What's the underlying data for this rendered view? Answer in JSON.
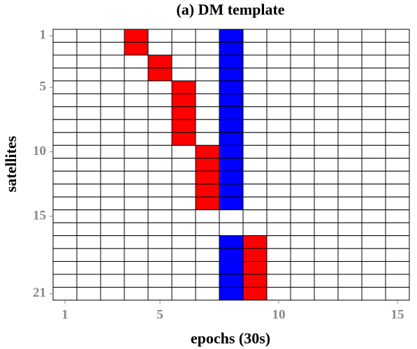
{
  "chart_data": {
    "type": "heatmap",
    "title": "(a) DM template",
    "x_label": "epochs (30s)",
    "y_label": "satellites",
    "xlim": [
      0.5,
      15.5
    ],
    "ylim": [
      0.5,
      21.5
    ],
    "xticks": [
      1,
      5,
      10,
      15
    ],
    "yticks": [
      1,
      5,
      10,
      15,
      21
    ],
    "colors": [
      "#ffffff",
      "#ff0000",
      "#0000ff"
    ],
    "z": [
      [
        0,
        0,
        0,
        1,
        0,
        0,
        0,
        2,
        0,
        0,
        0,
        0,
        0,
        0,
        0
      ],
      [
        0,
        0,
        0,
        1,
        0,
        0,
        0,
        2,
        0,
        0,
        0,
        0,
        0,
        0,
        0
      ],
      [
        0,
        0,
        0,
        0,
        1,
        0,
        0,
        2,
        0,
        0,
        0,
        0,
        0,
        0,
        0
      ],
      [
        0,
        0,
        0,
        0,
        1,
        0,
        0,
        2,
        0,
        0,
        0,
        0,
        0,
        0,
        0
      ],
      [
        0,
        0,
        0,
        0,
        0,
        1,
        0,
        2,
        0,
        0,
        0,
        0,
        0,
        0,
        0
      ],
      [
        0,
        0,
        0,
        0,
        0,
        1,
        0,
        2,
        0,
        0,
        0,
        0,
        0,
        0,
        0
      ],
      [
        0,
        0,
        0,
        0,
        0,
        1,
        0,
        2,
        0,
        0,
        0,
        0,
        0,
        0,
        0
      ],
      [
        0,
        0,
        0,
        0,
        0,
        1,
        0,
        2,
        0,
        0,
        0,
        0,
        0,
        0,
        0
      ],
      [
        0,
        0,
        0,
        0,
        0,
        1,
        0,
        2,
        0,
        0,
        0,
        0,
        0,
        0,
        0
      ],
      [
        0,
        0,
        0,
        0,
        0,
        0,
        1,
        2,
        0,
        0,
        0,
        0,
        0,
        0,
        0
      ],
      [
        0,
        0,
        0,
        0,
        0,
        0,
        1,
        2,
        0,
        0,
        0,
        0,
        0,
        0,
        0
      ],
      [
        0,
        0,
        0,
        0,
        0,
        0,
        1,
        2,
        0,
        0,
        0,
        0,
        0,
        0,
        0
      ],
      [
        0,
        0,
        0,
        0,
        0,
        0,
        1,
        2,
        0,
        0,
        0,
        0,
        0,
        0,
        0
      ],
      [
        0,
        0,
        0,
        0,
        0,
        0,
        1,
        2,
        0,
        0,
        0,
        0,
        0,
        0,
        0
      ],
      [
        0,
        0,
        0,
        0,
        0,
        0,
        0,
        0,
        0,
        0,
        0,
        0,
        0,
        0,
        0
      ],
      [
        0,
        0,
        0,
        0,
        0,
        0,
        0,
        0,
        0,
        0,
        0,
        0,
        0,
        0,
        0
      ],
      [
        0,
        0,
        0,
        0,
        0,
        0,
        0,
        2,
        1,
        0,
        0,
        0,
        0,
        0,
        0
      ],
      [
        0,
        0,
        0,
        0,
        0,
        0,
        0,
        2,
        1,
        0,
        0,
        0,
        0,
        0,
        0
      ],
      [
        0,
        0,
        0,
        0,
        0,
        0,
        0,
        2,
        1,
        0,
        0,
        0,
        0,
        0,
        0
      ],
      [
        0,
        0,
        0,
        0,
        0,
        0,
        0,
        2,
        1,
        0,
        0,
        0,
        0,
        0,
        0
      ],
      [
        0,
        0,
        0,
        0,
        0,
        0,
        0,
        2,
        1,
        0,
        0,
        0,
        0,
        0,
        0
      ]
    ]
  }
}
